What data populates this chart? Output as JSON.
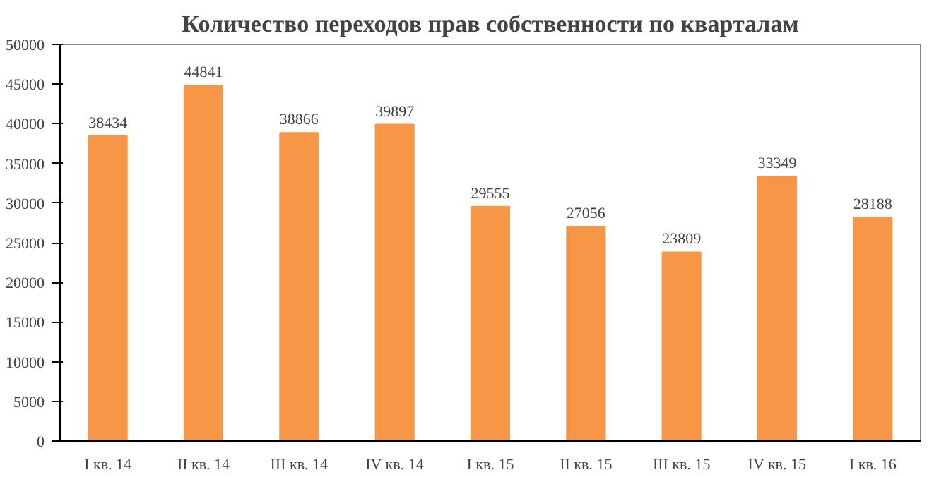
{
  "chart_data": {
    "type": "bar",
    "title": "Количество переходов прав собственности по кварталам",
    "categories": [
      "I кв. 14",
      "II кв. 14",
      "III кв. 14",
      "IV кв. 14",
      "I кв. 15",
      "II кв. 15",
      "III кв. 15",
      "IV кв. 15",
      "I кв. 16"
    ],
    "values": [
      38434,
      44841,
      38866,
      39897,
      29555,
      27056,
      23809,
      33349,
      28188
    ],
    "color": "#f79646",
    "ylim": [
      0,
      50000
    ],
    "yticks": [
      0,
      5000,
      10000,
      15000,
      20000,
      25000,
      30000,
      35000,
      40000,
      45000,
      50000
    ],
    "grid": false,
    "data_labels": true
  }
}
